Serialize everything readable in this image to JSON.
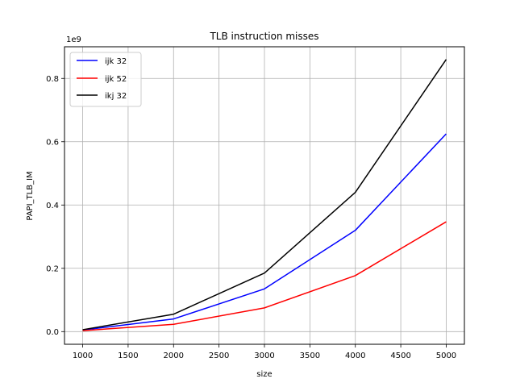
{
  "chart_data": {
    "type": "line",
    "title": "TLB instruction misses",
    "xlabel": "size",
    "ylabel": "PAPI_TLB_IM",
    "y_offset_label": "1e9",
    "x": [
      1000,
      2000,
      3000,
      4000,
      5000
    ],
    "xlim": [
      800,
      5200
    ],
    "ylim": [
      -0.04,
      0.9
    ],
    "x_ticks": [
      1000,
      1500,
      2000,
      2500,
      3000,
      3500,
      4000,
      4500,
      5000
    ],
    "y_ticks": [
      0.0,
      0.2,
      0.4,
      0.6,
      0.8
    ],
    "x_tick_labels": [
      "1000",
      "1500",
      "2000",
      "2500",
      "3000",
      "3500",
      "4000",
      "4500",
      "5000"
    ],
    "y_tick_labels": [
      "0.0",
      "0.2",
      "0.4",
      "0.6",
      "0.8"
    ],
    "grid": true,
    "legend_position": "top-left",
    "series": [
      {
        "name": "ijk 32",
        "color": "#0000ff",
        "values": [
          0.005,
          0.04,
          0.135,
          0.32,
          0.625
        ]
      },
      {
        "name": "ijk 52",
        "color": "#ff0000",
        "values": [
          0.003,
          0.023,
          0.075,
          0.177,
          0.347
        ]
      },
      {
        "name": "ikj 32",
        "color": "#000000",
        "values": [
          0.006,
          0.055,
          0.185,
          0.44,
          0.86
        ]
      }
    ]
  }
}
